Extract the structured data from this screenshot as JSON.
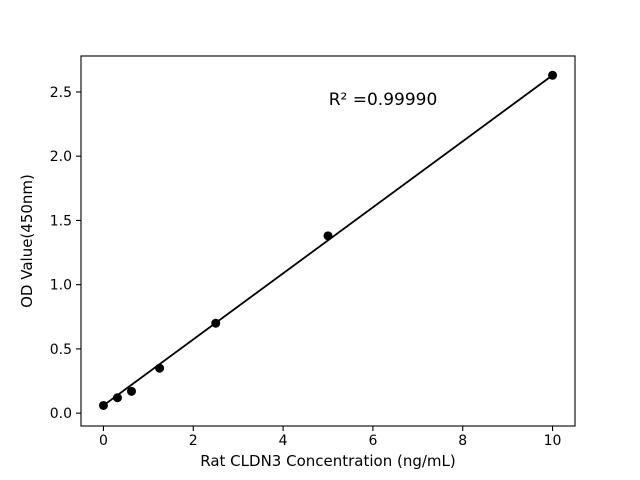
{
  "figure": {
    "background": "#ffffff"
  },
  "chart_data": {
    "type": "scatter",
    "title": "",
    "xlabel": "Rat CLDN3 Concentration (ng/mL)",
    "ylabel": "OD Value(450nm)",
    "annotation": "R² =0.99990",
    "x": [
      0,
      0.3125,
      0.625,
      1.25,
      2.5,
      5,
      10
    ],
    "y": [
      0.06,
      0.12,
      0.17,
      0.35,
      0.7,
      1.38,
      2.63
    ],
    "fit_line": {
      "x1": 0,
      "y1": 0.06,
      "x2": 10,
      "y2": 2.63
    },
    "xticks": [
      0,
      2,
      4,
      6,
      8,
      10
    ],
    "xtick_labels": [
      "0",
      "2",
      "4",
      "6",
      "8",
      "10"
    ],
    "yticks": [
      0.0,
      0.5,
      1.0,
      1.5,
      2.0,
      2.5
    ],
    "ytick_labels": [
      "0.0",
      "0.5",
      "1.0",
      "1.5",
      "2.0",
      "2.5"
    ],
    "xlim": [
      -0.5,
      10.5
    ],
    "ylim": [
      -0.1,
      2.78
    ],
    "grid": false,
    "legend": "none",
    "marker_color": "#000000",
    "line_color": "#000000",
    "axis_color": "#000000"
  }
}
